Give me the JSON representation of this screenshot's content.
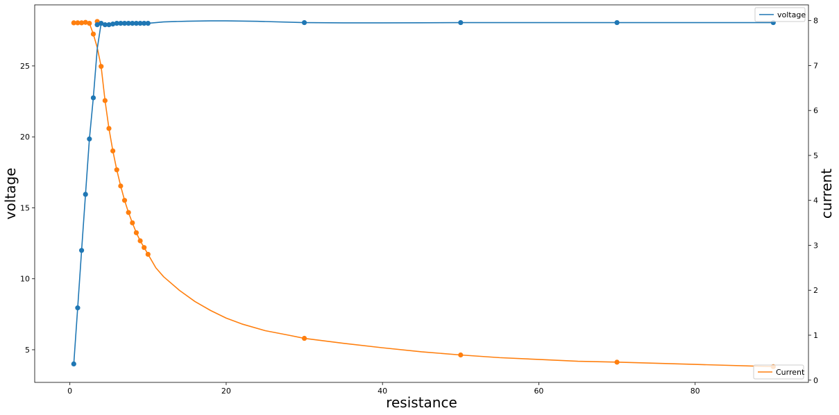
{
  "chart_data": {
    "type": "line",
    "xlabel": "resistance",
    "ylabel_left": "voltage",
    "ylabel_right": "current",
    "xlim": [
      -4.5,
      94.5
    ],
    "ylim_left": [
      2.7,
      29.3
    ],
    "ylim_right": [
      -0.05,
      8.35
    ],
    "x_ticks": [
      0,
      20,
      40,
      60,
      80
    ],
    "y_left_ticks": [
      5,
      10,
      15,
      20,
      25
    ],
    "y_right_ticks": [
      0,
      1,
      2,
      3,
      4,
      5,
      6,
      7,
      8
    ],
    "grid": false,
    "series": [
      {
        "name": "voltage",
        "axis": "left",
        "color": "#1f77b4",
        "legend_position": "upper right",
        "points": [
          [
            0.5,
            4.0
          ],
          [
            1.0,
            7.95
          ],
          [
            1.5,
            12.0
          ],
          [
            2.0,
            15.95
          ],
          [
            2.5,
            19.85
          ],
          [
            3.0,
            22.75
          ],
          [
            3.5,
            27.9
          ],
          [
            4.0,
            28.0
          ],
          [
            4.5,
            27.9
          ],
          [
            5.0,
            27.9
          ],
          [
            5.5,
            27.95
          ],
          [
            6.0,
            28.0
          ],
          [
            6.5,
            28.0
          ],
          [
            7.0,
            28.0
          ],
          [
            7.5,
            28.0
          ],
          [
            8.0,
            28.0
          ],
          [
            8.5,
            28.0
          ],
          [
            9.0,
            28.0
          ],
          [
            9.5,
            28.0
          ],
          [
            10.0,
            28.0
          ],
          [
            30.0,
            28.05
          ],
          [
            50.0,
            28.05
          ],
          [
            70.0,
            28.05
          ],
          [
            90.0,
            28.05
          ]
        ],
        "curve": [
          [
            0.5,
            4.0
          ],
          [
            1.0,
            7.95
          ],
          [
            1.5,
            12.0
          ],
          [
            2.0,
            15.95
          ],
          [
            2.5,
            19.85
          ],
          [
            3.0,
            22.75
          ],
          [
            3.5,
            26.2
          ],
          [
            4.0,
            28.0
          ],
          [
            4.5,
            27.9
          ],
          [
            5.0,
            27.9
          ],
          [
            5.5,
            27.95
          ],
          [
            6.0,
            28.0
          ],
          [
            7.0,
            28.0
          ],
          [
            8.0,
            28.0
          ],
          [
            9.0,
            28.0
          ],
          [
            10.0,
            28.0
          ],
          [
            12.0,
            28.1
          ],
          [
            15.0,
            28.15
          ],
          [
            18.0,
            28.17
          ],
          [
            20.0,
            28.17
          ],
          [
            24.0,
            28.14
          ],
          [
            30.0,
            28.05
          ],
          [
            35.0,
            28.03
          ],
          [
            40.0,
            28.03
          ],
          [
            45.0,
            28.04
          ],
          [
            50.0,
            28.05
          ],
          [
            60.0,
            28.05
          ],
          [
            70.0,
            28.05
          ],
          [
            80.0,
            28.05
          ],
          [
            90.0,
            28.05
          ]
        ]
      },
      {
        "name": "Current",
        "axis": "right",
        "color": "#ff7f0e",
        "legend_position": "lower right",
        "points": [
          [
            0.5,
            7.95
          ],
          [
            1.0,
            7.95
          ],
          [
            1.5,
            7.95
          ],
          [
            2.0,
            7.96
          ],
          [
            2.5,
            7.94
          ],
          [
            3.0,
            7.7
          ],
          [
            3.5,
            7.98
          ],
          [
            4.0,
            6.98
          ],
          [
            4.5,
            6.22
          ],
          [
            5.0,
            5.6
          ],
          [
            5.5,
            5.1
          ],
          [
            6.0,
            4.68
          ],
          [
            6.5,
            4.32
          ],
          [
            7.0,
            4.0
          ],
          [
            7.5,
            3.73
          ],
          [
            8.0,
            3.5
          ],
          [
            8.5,
            3.28
          ],
          [
            9.0,
            3.1
          ],
          [
            9.5,
            2.95
          ],
          [
            10.0,
            2.8
          ],
          [
            30.0,
            0.93
          ],
          [
            50.0,
            0.56
          ],
          [
            70.0,
            0.4
          ],
          [
            90.0,
            0.3
          ]
        ],
        "curve": [
          [
            0.5,
            7.95
          ],
          [
            1.0,
            7.95
          ],
          [
            1.5,
            7.95
          ],
          [
            2.0,
            7.96
          ],
          [
            2.5,
            7.94
          ],
          [
            3.0,
            7.7
          ],
          [
            3.5,
            7.4
          ],
          [
            4.0,
            6.98
          ],
          [
            4.5,
            6.22
          ],
          [
            5.0,
            5.6
          ],
          [
            5.5,
            5.1
          ],
          [
            6.0,
            4.68
          ],
          [
            6.5,
            4.32
          ],
          [
            7.0,
            4.0
          ],
          [
            7.5,
            3.73
          ],
          [
            8.0,
            3.5
          ],
          [
            8.5,
            3.28
          ],
          [
            9.0,
            3.1
          ],
          [
            9.5,
            2.95
          ],
          [
            10.0,
            2.8
          ],
          [
            11.0,
            2.5
          ],
          [
            12.0,
            2.3
          ],
          [
            14.0,
            2.0
          ],
          [
            16.0,
            1.75
          ],
          [
            18.0,
            1.55
          ],
          [
            20.0,
            1.38
          ],
          [
            22.0,
            1.25
          ],
          [
            25.0,
            1.1
          ],
          [
            28.0,
            1.0
          ],
          [
            30.0,
            0.93
          ],
          [
            35.0,
            0.82
          ],
          [
            40.0,
            0.72
          ],
          [
            45.0,
            0.63
          ],
          [
            50.0,
            0.56
          ],
          [
            55.0,
            0.5
          ],
          [
            60.0,
            0.46
          ],
          [
            65.0,
            0.42
          ],
          [
            70.0,
            0.4
          ],
          [
            80.0,
            0.35
          ],
          [
            90.0,
            0.3
          ]
        ]
      }
    ]
  }
}
